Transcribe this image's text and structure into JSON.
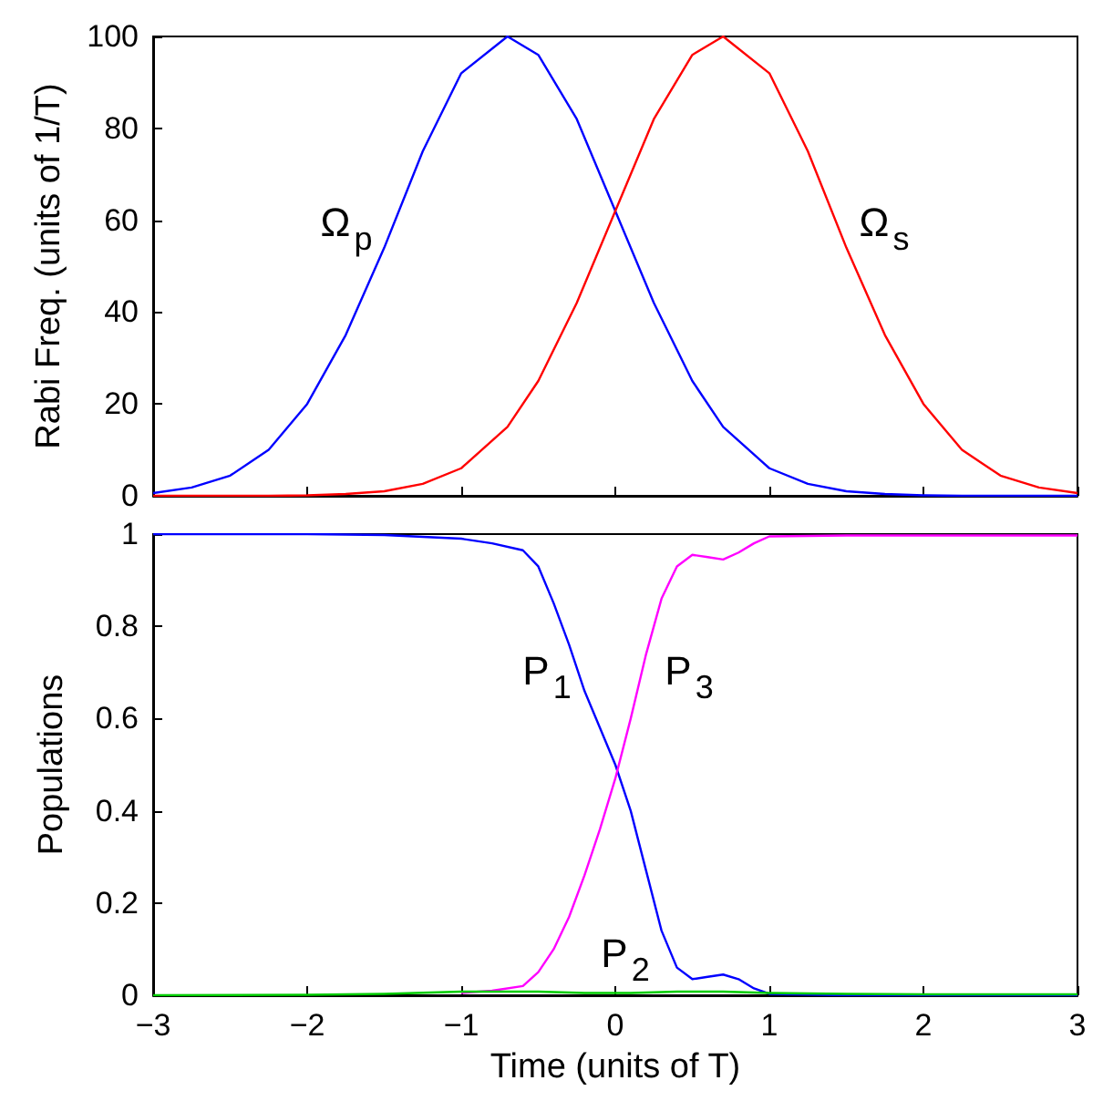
{
  "chart_data": [
    {
      "type": "line",
      "ylabel": "Rabi Freq. (units of 1/T)",
      "x": [
        -3,
        -2.75,
        -2.5,
        -2.25,
        -2,
        -1.75,
        -1.5,
        -1.25,
        -1,
        -0.7,
        -0.5,
        -0.25,
        0,
        0.25,
        0.5,
        0.7,
        1,
        1.25,
        1.5,
        1.75,
        2,
        2.25,
        2.5,
        2.75,
        3
      ],
      "series": [
        {
          "color": "#0000ff",
          "values": [
            0.6,
            1.8,
            4.4,
            10,
            20,
            35,
            54,
            75,
            92,
            100,
            96,
            82,
            62,
            42,
            25,
            15,
            6,
            2.6,
            1,
            0.4,
            0.1,
            0,
            0,
            0,
            0
          ]
        },
        {
          "color": "#ff0000",
          "values": [
            0,
            0,
            0,
            0,
            0.1,
            0.4,
            1,
            2.6,
            6,
            15,
            25,
            42,
            62,
            82,
            96,
            100,
            92,
            75,
            54,
            35,
            20,
            10,
            4.4,
            1.8,
            0.6
          ]
        }
      ],
      "annotations": [
        "Ω$_{p}$",
        "Ω$_{s}$"
      ],
      "xlim": [
        -3,
        3
      ],
      "xticks": [
        -3,
        -2,
        -1,
        0,
        1,
        2,
        3
      ],
      "ylim": [
        0,
        100
      ],
      "yticks": [
        0,
        20,
        40,
        60,
        80,
        100
      ],
      "tick_labels": "y",
      "grid": false,
      "marker": "none",
      "line_style": "solid"
    },
    {
      "type": "line",
      "xlabel": "Time (units of T)",
      "ylabel": "Populations",
      "x": [
        -3,
        -2,
        -1.5,
        -1,
        -0.8,
        -0.6,
        -0.5,
        -0.4,
        -0.3,
        -0.2,
        -0.1,
        0,
        0.1,
        0.2,
        0.3,
        0.4,
        0.5,
        0.6,
        0.7,
        0.8,
        0.9,
        1,
        1.5,
        2,
        3
      ],
      "series": [
        {
          "color": "#0000ff",
          "values": [
            1,
            1,
            0.998,
            0.99,
            0.98,
            0.965,
            0.93,
            0.85,
            0.76,
            0.66,
            0.58,
            0.5,
            0.4,
            0.27,
            0.14,
            0.06,
            0.035,
            0.04,
            0.045,
            0.035,
            0.015,
            0.003,
            0,
            0,
            0
          ]
        },
        {
          "color": "#ff00ff",
          "values": [
            null,
            null,
            null,
            0.005,
            0.01,
            0.02,
            0.05,
            0.1,
            0.17,
            0.26,
            0.36,
            0.47,
            0.6,
            0.74,
            0.86,
            0.93,
            0.955,
            0.95,
            0.945,
            0.96,
            0.98,
            0.995,
            0.997,
            0.997,
            0.997
          ]
        },
        {
          "color": "#00cc00",
          "values": [
            0,
            0.001,
            0.003,
            0.008,
            0.008,
            0.008,
            0.008,
            0.007,
            0.006,
            0.005,
            0.005,
            0.005,
            0.005,
            0.006,
            0.007,
            0.008,
            0.008,
            0.008,
            0.008,
            0.007,
            0.006,
            0.005,
            0.003,
            0.002,
            0.002
          ]
        }
      ],
      "annotations": [
        "P$_{1}$",
        "P$_{3}$",
        "P$_{2}$"
      ],
      "xlim": [
        -3,
        3
      ],
      "xticks": [
        {
          "value": -3,
          "label": "−3"
        },
        {
          "value": -2,
          "label": "−2"
        },
        {
          "value": -1,
          "label": "−1"
        },
        0,
        1,
        2,
        3
      ],
      "ylim": [
        0,
        1
      ],
      "yticks": [
        0,
        0.2,
        0.4,
        0.6,
        0.8,
        1
      ],
      "grid": false,
      "marker": "none",
      "line_style": "solid"
    }
  ]
}
